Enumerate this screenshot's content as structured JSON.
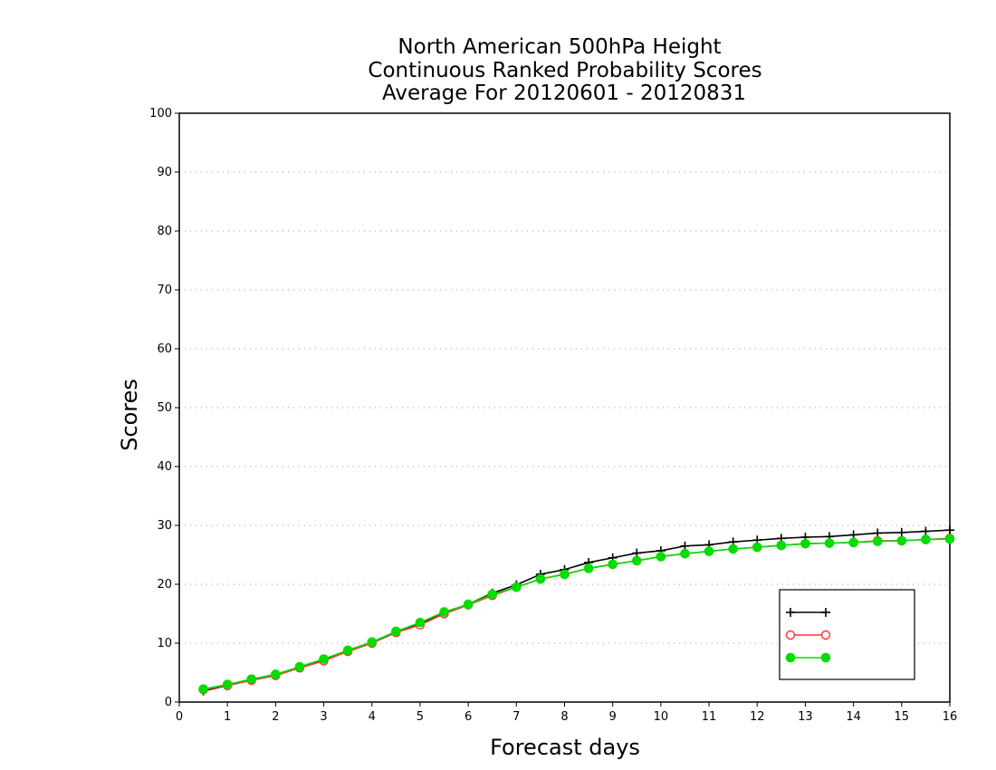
{
  "chart_data": {
    "type": "line",
    "title_lines": [
      "North American 500hPa Height",
      "Continuous Ranked Probability Scores",
      "Average For 20120601 - 20120831"
    ],
    "xlabel": "Forecast days",
    "ylabel": "Scores",
    "xlim": [
      0,
      16
    ],
    "ylim": [
      0,
      100
    ],
    "x_ticks": [
      "0",
      "1",
      "2",
      "3",
      "4",
      "5",
      "6",
      "7",
      "8",
      "9",
      "10",
      "11",
      "12",
      "13",
      "14",
      "15",
      "16"
    ],
    "y_ticks": [
      "0",
      "10",
      "20",
      "30",
      "40",
      "50",
      "60",
      "70",
      "80",
      "90",
      "100"
    ],
    "grid": "horizontal dotted",
    "legend_position": "bottom-right",
    "x": [
      0.5,
      1,
      1.5,
      2,
      2.5,
      3,
      3.5,
      4,
      4.5,
      5,
      5.5,
      6,
      6.5,
      7,
      7.5,
      8,
      8.5,
      9,
      9.5,
      10,
      10.5,
      11,
      11.5,
      12,
      12.5,
      13,
      13.5,
      14,
      14.5,
      15,
      15.5,
      16
    ],
    "series": [
      {
        "name": "",
        "color": "#000000",
        "marker": "plus",
        "values": [
          1.9,
          2.8,
          3.8,
          4.7,
          5.9,
          7.1,
          8.6,
          10.1,
          11.9,
          13.4,
          15.1,
          16.6,
          18.5,
          19.9,
          21.7,
          22.5,
          23.7,
          24.5,
          25.3,
          25.7,
          26.5,
          26.7,
          27.2,
          27.5,
          27.8,
          28.0,
          28.1,
          28.4,
          28.7,
          28.8,
          29.0,
          29.2
        ]
      },
      {
        "name": "",
        "color": "#ff3333",
        "marker": "open-circle",
        "values": [
          2.1,
          2.8,
          3.7,
          4.5,
          5.8,
          7.0,
          8.6,
          10.0,
          11.8,
          13.1,
          15.0,
          16.5,
          18.1,
          19.5,
          20.9,
          21.7,
          22.7,
          23.4,
          24.0,
          24.7,
          25.2,
          25.6,
          26.0,
          26.3,
          26.6,
          26.9,
          27.0,
          27.1,
          27.4,
          27.4,
          27.6,
          27.8
        ]
      },
      {
        "name": "",
        "color": "#00dd00",
        "marker": "filled-circle",
        "values": [
          2.2,
          3.0,
          3.9,
          4.7,
          6.0,
          7.3,
          8.8,
          10.2,
          12.0,
          13.5,
          15.3,
          16.6,
          18.3,
          19.5,
          20.9,
          21.7,
          22.7,
          23.4,
          24.0,
          24.7,
          25.2,
          25.6,
          26.0,
          26.3,
          26.6,
          26.9,
          27.0,
          27.1,
          27.3,
          27.4,
          27.6,
          27.7
        ]
      }
    ]
  }
}
